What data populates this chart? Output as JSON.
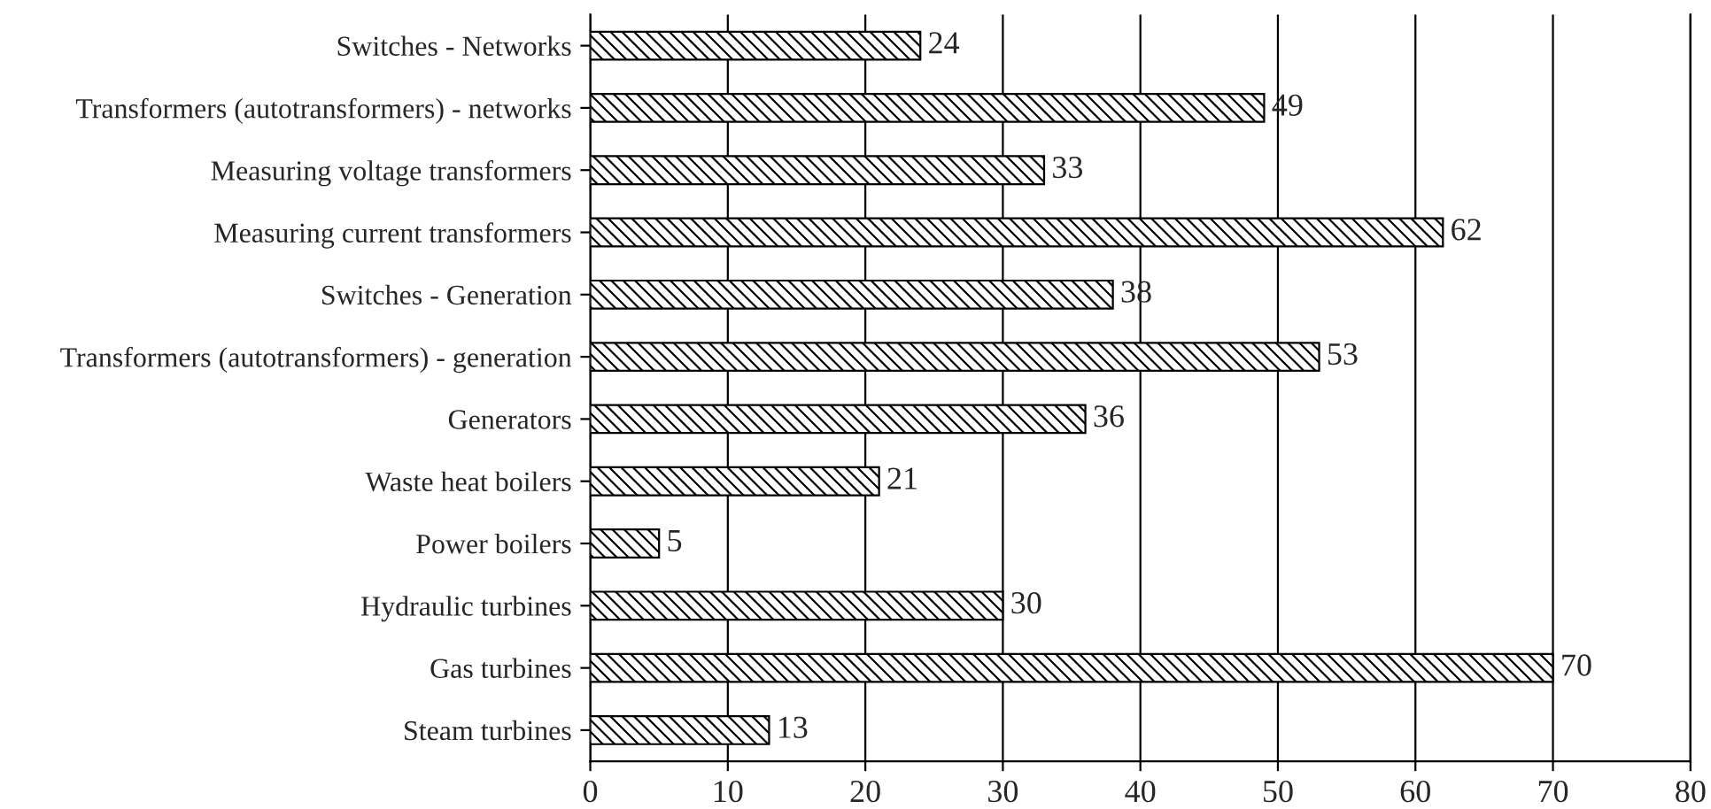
{
  "chart_data": {
    "type": "bar",
    "orientation": "horizontal",
    "categories": [
      "Switches - Networks",
      "Transformers (autotransformers) - networks",
      "Measuring voltage transformers",
      "Measuring current transformers",
      "Switches - Generation",
      "Transformers (autotransformers) - generation",
      "Generators",
      "Waste heat boilers",
      "Power boilers",
      "Hydraulic turbines",
      "Gas turbines",
      "Steam turbines"
    ],
    "values": [
      24,
      49,
      33,
      62,
      38,
      53,
      36,
      21,
      5,
      30,
      70,
      13
    ],
    "color": "#000000",
    "xlim": [
      0,
      80
    ],
    "xticks": [
      0,
      10,
      20,
      30,
      40,
      50,
      60,
      70,
      80
    ],
    "grid": "x",
    "data_labels": true,
    "legend": false
  }
}
